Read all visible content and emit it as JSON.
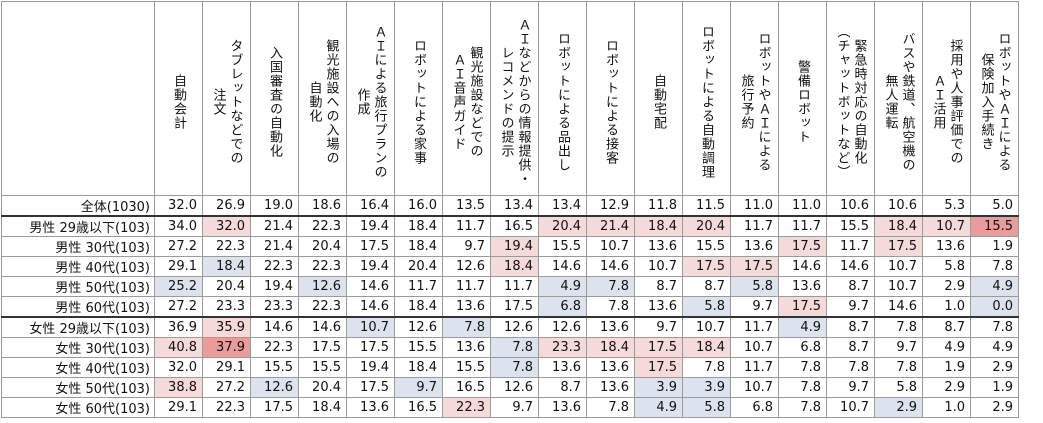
{
  "chart_data": {
    "type": "table",
    "columns": [
      "自動会計",
      "タブレットなどでの\n注文",
      "入国審査の自動化",
      "観光施設への入場の\n自動化",
      "ＡＩによる旅行プランの\n作成",
      "ロボットによる家事",
      "観光施設などでの\nＡＩ音声ガイド",
      "ＡＩなどからの情報提供・\nレコメンドの提示",
      "ロボットによる品出し",
      "ロボットによる接客",
      "自動宅配",
      "ロボットによる自動調理",
      "ロボットやＡＩによる\n旅行予約",
      "警備ロボット",
      "緊急時対応の自動化\n（チャットボットなど）",
      "バスや鉄道、航空機の\n無人運転",
      "採用や人事評価での\nＡＩ活用",
      "ロボットやＡＩによる\n保険加入手続き"
    ],
    "rows": [
      {
        "label": "全体(1030)",
        "values": [
          32.0,
          26.9,
          19.0,
          18.6,
          16.4,
          16.0,
          13.5,
          13.4,
          13.4,
          12.9,
          11.8,
          11.5,
          11.0,
          11.0,
          10.6,
          10.6,
          5.3,
          5.0
        ]
      },
      {
        "label": "男性 29歳以下(103)",
        "values": [
          34.0,
          32.0,
          21.4,
          22.3,
          19.4,
          18.4,
          11.7,
          16.5,
          20.4,
          21.4,
          18.4,
          20.4,
          11.7,
          11.7,
          15.5,
          18.4,
          10.7,
          15.5
        ]
      },
      {
        "label": "男性 30代(103)",
        "values": [
          27.2,
          22.3,
          21.4,
          20.4,
          17.5,
          18.4,
          9.7,
          19.4,
          15.5,
          10.7,
          13.6,
          15.5,
          13.6,
          17.5,
          11.7,
          17.5,
          13.6,
          1.9
        ]
      },
      {
        "label": "男性 40代(103)",
        "values": [
          29.1,
          18.4,
          22.3,
          22.3,
          19.4,
          20.4,
          12.6,
          18.4,
          14.6,
          14.6,
          10.7,
          17.5,
          17.5,
          14.6,
          14.6,
          10.7,
          5.8,
          7.8
        ]
      },
      {
        "label": "男性 50代(103)",
        "values": [
          25.2,
          20.4,
          19.4,
          12.6,
          14.6,
          11.7,
          11.7,
          11.7,
          4.9,
          7.8,
          8.7,
          8.7,
          5.8,
          13.6,
          8.7,
          10.7,
          2.9,
          4.9
        ]
      },
      {
        "label": "男性 60代(103)",
        "values": [
          27.2,
          23.3,
          23.3,
          22.3,
          14.6,
          18.4,
          13.6,
          17.5,
          6.8,
          7.8,
          13.6,
          5.8,
          9.7,
          17.5,
          9.7,
          14.6,
          1.0,
          0.0
        ]
      },
      {
        "label": "女性 29歳以下(103)",
        "values": [
          36.9,
          35.9,
          14.6,
          14.6,
          10.7,
          12.6,
          7.8,
          12.6,
          12.6,
          13.6,
          9.7,
          10.7,
          11.7,
          4.9,
          8.7,
          7.8,
          8.7,
          7.8
        ]
      },
      {
        "label": "女性 30代(103)",
        "values": [
          40.8,
          37.9,
          22.3,
          17.5,
          17.5,
          15.5,
          13.6,
          7.8,
          23.3,
          18.4,
          17.5,
          18.4,
          10.7,
          6.8,
          8.7,
          9.7,
          4.9,
          4.9
        ]
      },
      {
        "label": "女性 40代(103)",
        "values": [
          32.0,
          29.1,
          15.5,
          15.5,
          19.4,
          18.4,
          15.5,
          7.8,
          13.6,
          13.6,
          17.5,
          7.8,
          11.7,
          7.8,
          7.8,
          7.8,
          1.9,
          2.9
        ]
      },
      {
        "label": "女性 50代(103)",
        "values": [
          38.8,
          27.2,
          12.6,
          20.4,
          17.5,
          9.7,
          16.5,
          12.6,
          8.7,
          13.6,
          3.9,
          3.9,
          10.7,
          7.8,
          9.7,
          5.8,
          2.9,
          1.9
        ]
      },
      {
        "label": "女性 60代(103)",
        "values": [
          29.1,
          22.3,
          17.5,
          18.4,
          13.6,
          16.5,
          22.3,
          9.7,
          13.6,
          7.8,
          4.9,
          5.8,
          6.8,
          7.8,
          10.7,
          2.9,
          1.0,
          2.9
        ]
      }
    ],
    "highlight": {
      "1": {
        "1": "lv1",
        "8": "lv1",
        "9": "lv1",
        "10": "lv1",
        "11": "lv1",
        "15": "lv1",
        "16": "lv1",
        "17": "lv2"
      },
      "2": {
        "7": "lv1",
        "13": "lv1",
        "15": "lv1"
      },
      "3": {
        "1": "lo",
        "7": "lv1",
        "11": "lv1",
        "12": "lv1"
      },
      "4": {
        "0": "lo",
        "3": "lo",
        "8": "lo",
        "9": "lo",
        "12": "lo",
        "17": "lo"
      },
      "5": {
        "8": "lo",
        "11": "lo",
        "13": "lv1",
        "17": "lo"
      },
      "6": {
        "1": "lv1",
        "4": "lo",
        "6": "lo",
        "13": "lo"
      },
      "7": {
        "0": "lv1",
        "1": "lv2",
        "7": "lo",
        "8": "lv1",
        "9": "lv1",
        "10": "lv1",
        "11": "lv1"
      },
      "8": {
        "7": "lo",
        "10": "lv1"
      },
      "9": {
        "0": "lv1",
        "2": "lo",
        "5": "lo",
        "10": "lo",
        "11": "lo"
      },
      "10": {
        "6": "lv1",
        "10": "lo",
        "11": "lo",
        "15": "lo"
      }
    },
    "colors": {
      "high": "#f6d9d9",
      "very_high": "#ec9b9b",
      "low": "#dce3ef",
      "border": "#9a9a9a"
    }
  }
}
